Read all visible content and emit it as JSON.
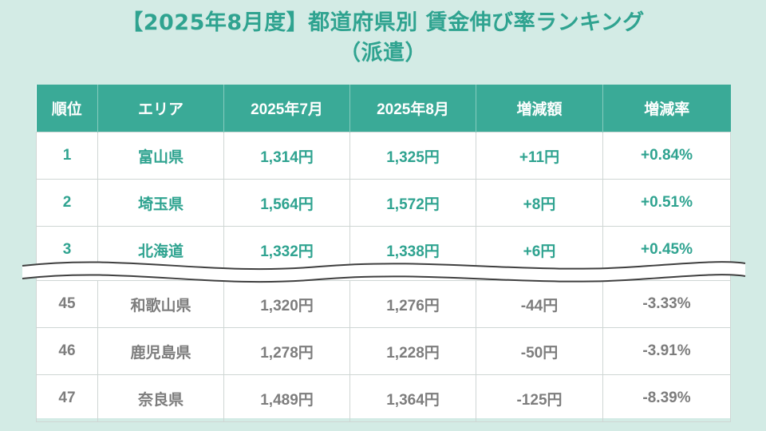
{
  "title": {
    "line1": "【2025年8月度】都道府県別 賃金伸び率ランキング",
    "line2": "（派遣）"
  },
  "table": {
    "headers": [
      "順位",
      "エリア",
      "2025年7月",
      "2025年8月",
      "増減額",
      "増減率"
    ],
    "top_rows": [
      [
        "1",
        "富山県",
        "1,314円",
        "1,325円",
        "+11円",
        "+0.84%"
      ],
      [
        "2",
        "埼玉県",
        "1,564円",
        "1,572円",
        "+8円",
        "+0.51%"
      ],
      [
        "3",
        "北海道",
        "1,332円",
        "1,338円",
        "+6円",
        "+0.45%"
      ]
    ],
    "bottom_rows": [
      [
        "45",
        "和歌山県",
        "1,320円",
        "1,276円",
        "-44円",
        "-3.33%"
      ],
      [
        "46",
        "鹿児島県",
        "1,278円",
        "1,228円",
        "-50円",
        "-3.91%"
      ],
      [
        "47",
        "奈良県",
        "1,489円",
        "1,364円",
        "-125円",
        "-8.39%"
      ]
    ]
  },
  "colors": {
    "background": "#d3ebe5",
    "header": "#3aaa97",
    "accent_text": "#2fa390",
    "muted_text": "#7d7d7d"
  }
}
